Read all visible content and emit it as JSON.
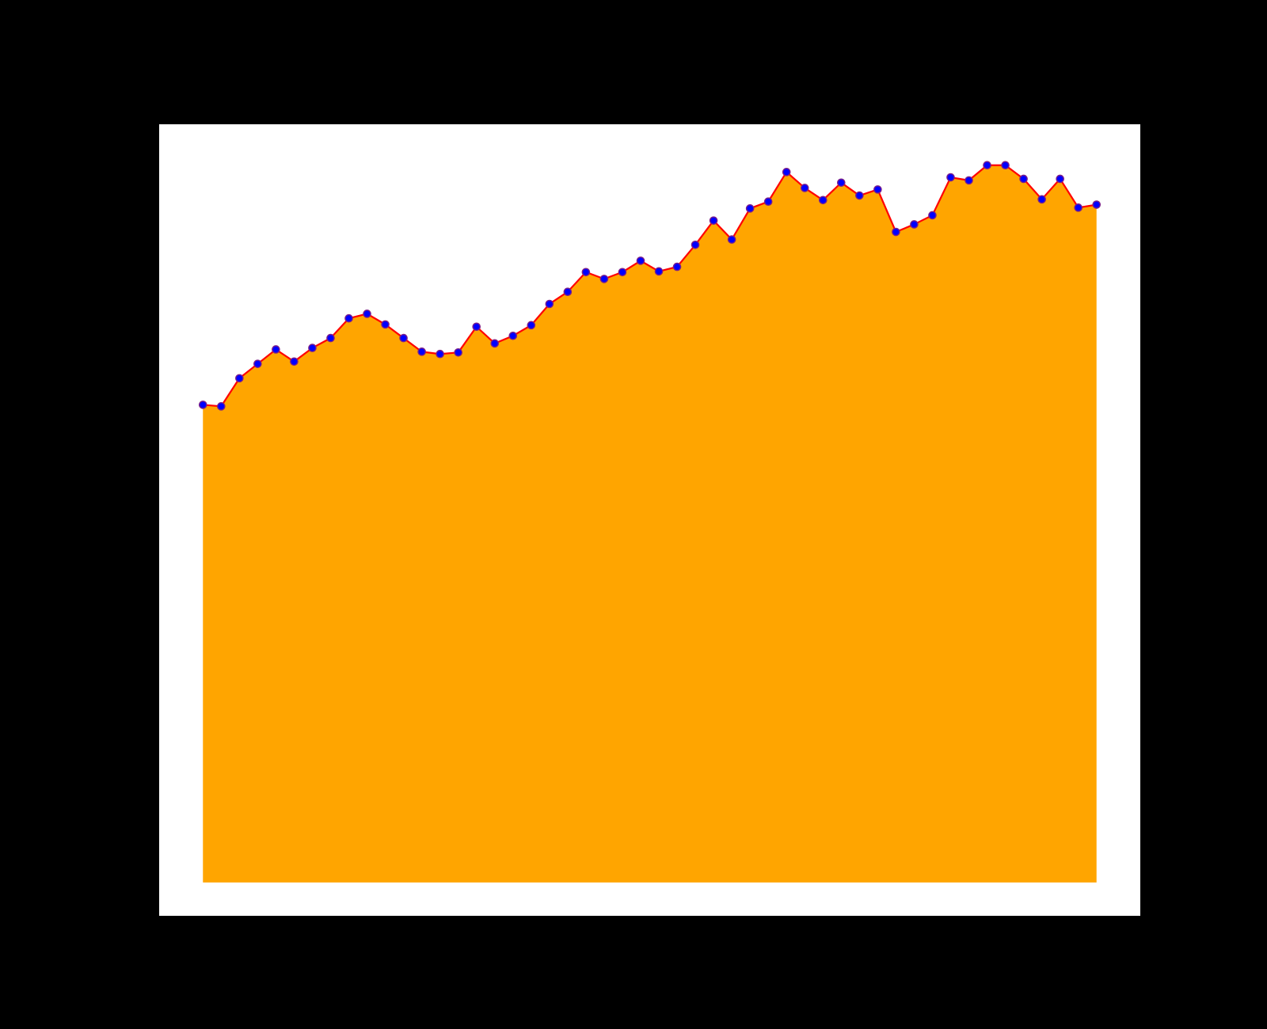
{
  "colors": {
    "figure_background": "#000000",
    "axes_background": "#ffffff",
    "area_fill": "#ffa500",
    "line": "#ff0000",
    "marker_face": "#0000ff",
    "marker_edge": "#7a1f8a"
  },
  "chart_data": {
    "type": "area",
    "title": "",
    "xlabel": "",
    "ylabel": "",
    "grid": false,
    "legend": "none",
    "baseline": 0,
    "ylim": [
      -4.4,
      100
    ],
    "x": [
      0,
      1,
      2,
      3,
      4,
      5,
      6,
      7,
      8,
      9,
      10,
      11,
      12,
      13,
      14,
      15,
      16,
      17,
      18,
      19,
      20,
      21,
      22,
      23,
      24,
      25,
      26,
      27,
      28,
      29,
      30,
      31,
      32,
      33,
      34,
      35,
      36,
      37,
      38,
      39,
      40,
      41,
      42,
      43,
      44,
      45,
      46,
      47,
      48,
      49
    ],
    "xlim": [
      -2.4,
      51.4
    ],
    "series": [
      {
        "values": [
          63.0,
          62.8,
          66.5,
          68.4,
          70.3,
          68.7,
          70.5,
          71.8,
          74.4,
          75.0,
          73.6,
          71.8,
          70.0,
          69.7,
          69.9,
          73.3,
          71.1,
          72.1,
          73.5,
          76.3,
          77.9,
          80.5,
          79.6,
          80.5,
          82.0,
          80.6,
          81.2,
          84.1,
          87.3,
          84.8,
          88.9,
          89.8,
          93.7,
          91.6,
          90.0,
          92.3,
          90.6,
          91.4,
          85.8,
          86.8,
          88.0,
          93.0,
          92.6,
          94.6,
          94.6,
          92.8,
          90.1,
          92.8,
          89.0,
          89.4
        ]
      }
    ]
  }
}
